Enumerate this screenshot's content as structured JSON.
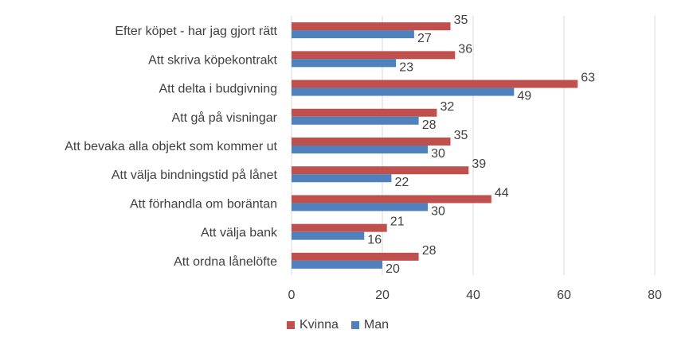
{
  "chart_data": {
    "type": "bar",
    "orientation": "horizontal",
    "categories": [
      "Efter köpet - har jag gjort rätt",
      "Att skriva köpekontrakt",
      "Att delta i budgivning",
      "Att gå på visningar",
      "Att bevaka alla objekt som kommer ut",
      "Att välja bindningstid på lånet",
      "Att förhandla om boräntan",
      "Att välja bank",
      "Att ordna lånelöfte"
    ],
    "series": [
      {
        "name": "Kvinna",
        "color": "#C0504D",
        "values": [
          35,
          36,
          63,
          32,
          35,
          39,
          44,
          21,
          28
        ]
      },
      {
        "name": "Man",
        "color": "#4F81BD",
        "values": [
          27,
          23,
          49,
          28,
          30,
          22,
          30,
          16,
          20
        ]
      }
    ],
    "xlim": [
      0,
      80
    ],
    "ticks": [
      0,
      20,
      40,
      60,
      80
    ],
    "grid": true,
    "legend_position": "bottom"
  }
}
